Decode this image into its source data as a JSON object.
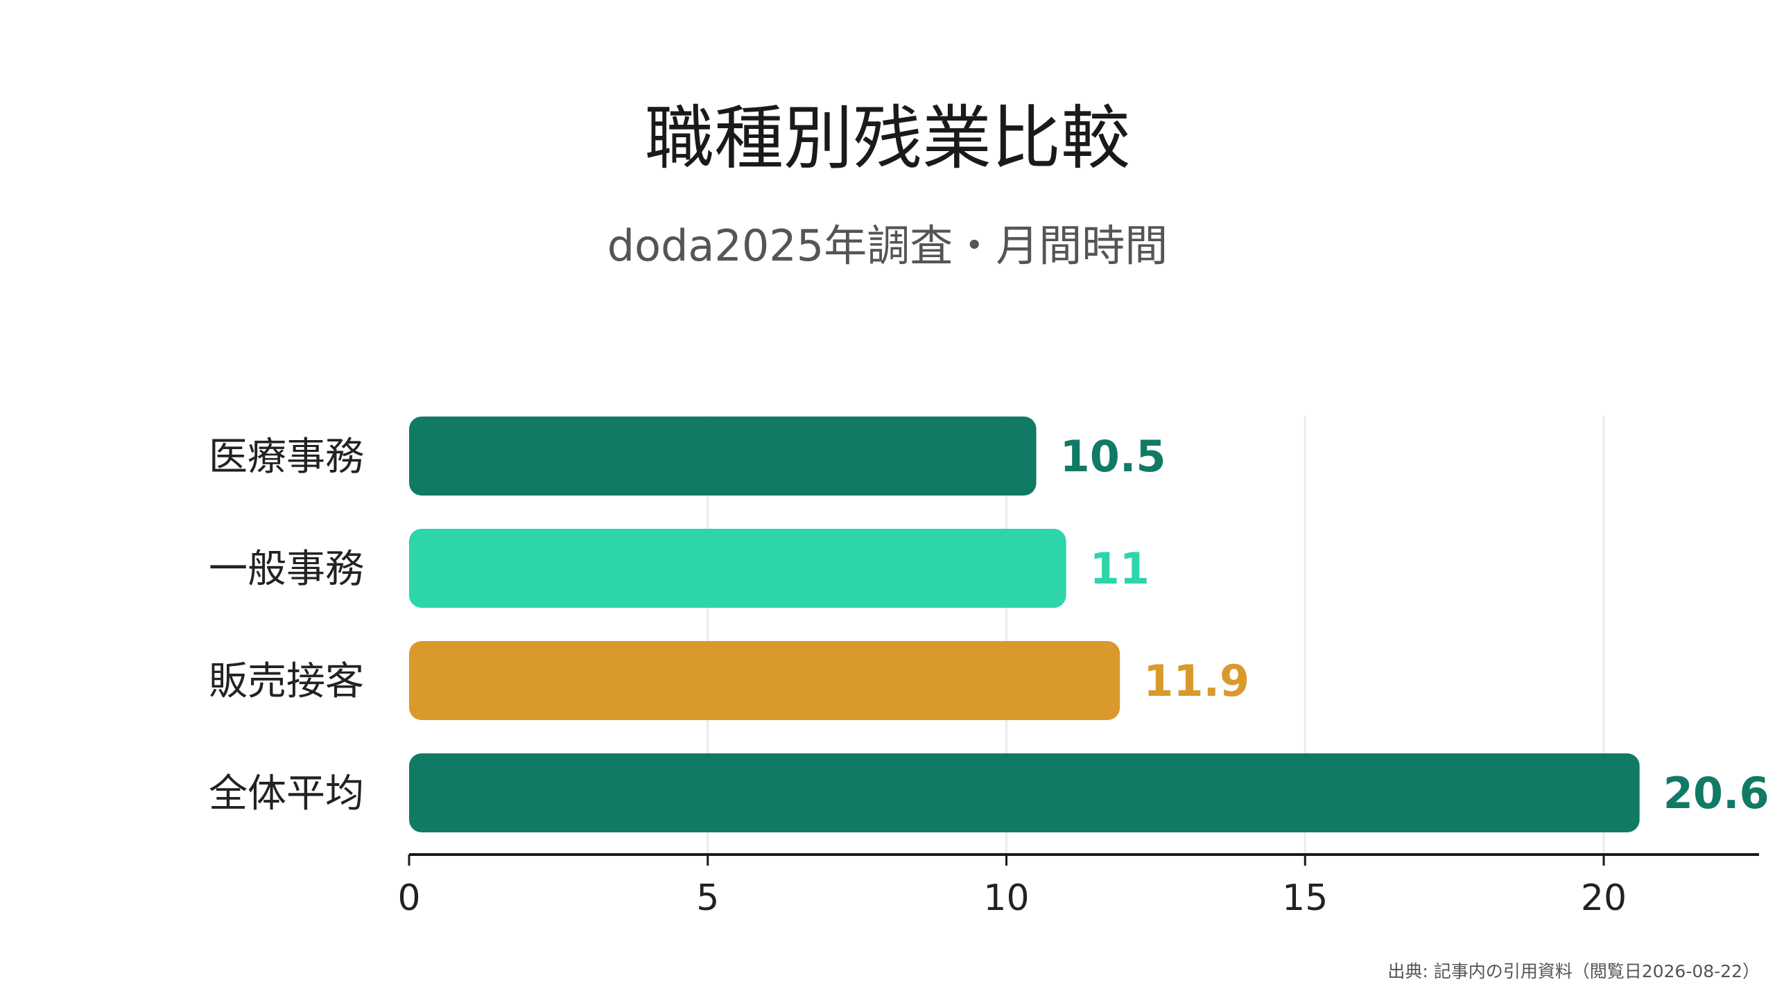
{
  "title": "職種別残業比較",
  "subtitle": "doda2025年調査・月間時間",
  "source": "出典: 記事内の引用資料（閲覧日2026-08-22）",
  "chart_data": {
    "type": "bar",
    "orientation": "horizontal",
    "title": "職種別残業比較",
    "subtitle": "doda2025年調査・月間時間",
    "categories": [
      "医療事務",
      "一般事務",
      "販売接客",
      "全体平均"
    ],
    "values": [
      10.5,
      11,
      11.9,
      20.6
    ],
    "value_labels": [
      "10.5",
      "11",
      "11.9",
      "20.6"
    ],
    "colors": [
      "#117a65",
      "#2ed5aa",
      "#d99a2b",
      "#117a65"
    ],
    "xlim": [
      0,
      22.6
    ],
    "xticks": [
      0,
      5,
      10,
      15,
      20
    ],
    "xtick_labels": [
      "0",
      "5",
      "10",
      "15",
      "20"
    ],
    "grid": true,
    "legend": "none"
  }
}
